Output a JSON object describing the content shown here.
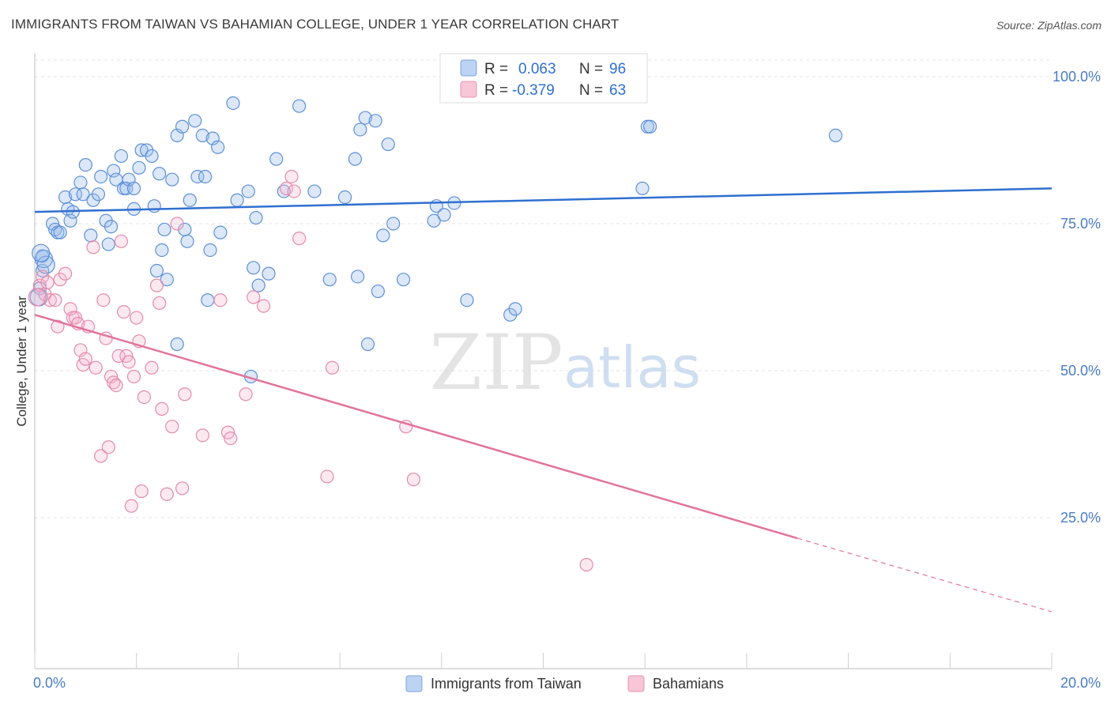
{
  "header": {
    "title": "IMMIGRANTS FROM TAIWAN VS BAHAMIAN COLLEGE, UNDER 1 YEAR CORRELATION CHART",
    "source": "Source: ZipAtlas.com"
  },
  "watermark": {
    "zip": "ZIP",
    "atlas": "atlas"
  },
  "legend": {
    "r_label": "R =",
    "n_label": "N =",
    "rows": [
      {
        "name": "Immigrants from Taiwan",
        "r": "0.063",
        "n": "96"
      },
      {
        "name": "Bahamians",
        "r": "-0.379",
        "n": "63"
      }
    ]
  },
  "chart_data": {
    "type": "scatter",
    "title": "IMMIGRANTS FROM TAIWAN VS BAHAMIAN COLLEGE, UNDER 1 YEAR CORRELATION CHART",
    "xlabel": "",
    "ylabel": "College, Under 1 year",
    "xlim": [
      0,
      20
    ],
    "ylim": [
      0,
      105
    ],
    "x_tick_labels": [
      "0.0%",
      "20.0%"
    ],
    "y_ticks": [
      25,
      50,
      75,
      100
    ],
    "y_tick_labels": [
      "25.0%",
      "50.0%",
      "75.0%",
      "100.0%"
    ],
    "colors": {
      "taiwan": "#4a84d4",
      "bahamians": "#e8799e",
      "tick": "#4a7cc7"
    },
    "series": [
      {
        "name": "Immigrants from Taiwan",
        "color": "#4a84d4",
        "trend": {
          "x": [
            0,
            20
          ],
          "y": [
            77,
            81
          ]
        },
        "points": [
          [
            0.15,
            69.5
          ],
          [
            0.15,
            67
          ],
          [
            0.1,
            64
          ],
          [
            0.35,
            75
          ],
          [
            0.4,
            74
          ],
          [
            0.45,
            73.5
          ],
          [
            0.5,
            73.5
          ],
          [
            0.6,
            79.5
          ],
          [
            0.65,
            77.5
          ],
          [
            0.7,
            75.5
          ],
          [
            0.75,
            77
          ],
          [
            0.8,
            80
          ],
          [
            0.9,
            82
          ],
          [
            0.95,
            80
          ],
          [
            1.0,
            85
          ],
          [
            1.1,
            73
          ],
          [
            1.15,
            79
          ],
          [
            1.25,
            80
          ],
          [
            1.3,
            83
          ],
          [
            1.4,
            75.5
          ],
          [
            1.45,
            71.5
          ],
          [
            1.5,
            74.5
          ],
          [
            1.55,
            84
          ],
          [
            1.6,
            82.5
          ],
          [
            1.7,
            86.5
          ],
          [
            1.75,
            81
          ],
          [
            1.8,
            81
          ],
          [
            1.85,
            82.5
          ],
          [
            1.95,
            81
          ],
          [
            1.95,
            77.5
          ],
          [
            2.05,
            84.5
          ],
          [
            2.1,
            87.5
          ],
          [
            2.2,
            87.5
          ],
          [
            2.3,
            86.5
          ],
          [
            2.35,
            78
          ],
          [
            2.4,
            67
          ],
          [
            2.45,
            83.5
          ],
          [
            2.5,
            70.5
          ],
          [
            2.55,
            74
          ],
          [
            2.6,
            65.5
          ],
          [
            2.7,
            82.5
          ],
          [
            2.8,
            54.5
          ],
          [
            2.8,
            90
          ],
          [
            2.9,
            91.5
          ],
          [
            2.95,
            74
          ],
          [
            3.0,
            72
          ],
          [
            3.05,
            79
          ],
          [
            3.15,
            92.5
          ],
          [
            3.2,
            83
          ],
          [
            3.3,
            90
          ],
          [
            3.35,
            83
          ],
          [
            3.4,
            62
          ],
          [
            3.45,
            70.5
          ],
          [
            3.5,
            89.5
          ],
          [
            3.6,
            88
          ],
          [
            3.65,
            73.5
          ],
          [
            3.9,
            95.5
          ],
          [
            3.98,
            79
          ],
          [
            4.2,
            80.5
          ],
          [
            4.25,
            49
          ],
          [
            4.3,
            67.5
          ],
          [
            4.35,
            76
          ],
          [
            4.4,
            64.5
          ],
          [
            4.6,
            66.5
          ],
          [
            4.75,
            86
          ],
          [
            4.9,
            80.5
          ],
          [
            5.2,
            95
          ],
          [
            5.5,
            80.5
          ],
          [
            5.8,
            65.5
          ],
          [
            6.1,
            79.5
          ],
          [
            6.3,
            86
          ],
          [
            6.35,
            66
          ],
          [
            6.4,
            91
          ],
          [
            6.5,
            93
          ],
          [
            6.55,
            54.5
          ],
          [
            6.7,
            92.5
          ],
          [
            6.75,
            63.5
          ],
          [
            6.85,
            73
          ],
          [
            6.95,
            88.5
          ],
          [
            7.05,
            75
          ],
          [
            7.25,
            65.5
          ],
          [
            7.85,
            75.5
          ],
          [
            7.9,
            78
          ],
          [
            8.05,
            76.5
          ],
          [
            8.25,
            78.5
          ],
          [
            8.5,
            62
          ],
          [
            9.35,
            59.5
          ],
          [
            9.45,
            60.5
          ],
          [
            11.95,
            81
          ],
          [
            12.05,
            91.5
          ],
          [
            12.1,
            91.5
          ],
          [
            15.75,
            90
          ],
          [
            0.18,
            69
          ],
          [
            0.22,
            68
          ],
          [
            0.08,
            62.5
          ],
          [
            0.12,
            70
          ]
        ]
      },
      {
        "name": "Bahamians",
        "color": "#e8799e",
        "trend": {
          "x": [
            0,
            15
          ],
          "y": [
            59.5,
            21.5
          ]
        },
        "trend_extension": {
          "x": [
            15,
            20
          ],
          "y": [
            21.5,
            9
          ]
        },
        "points": [
          [
            0.1,
            64.5
          ],
          [
            0.15,
            66
          ],
          [
            0.2,
            63
          ],
          [
            0.25,
            65
          ],
          [
            0.3,
            62
          ],
          [
            0.4,
            62
          ],
          [
            0.45,
            57.5
          ],
          [
            0.5,
            65.5
          ],
          [
            0.6,
            66.5
          ],
          [
            0.7,
            60.5
          ],
          [
            0.75,
            59
          ],
          [
            0.8,
            59
          ],
          [
            0.85,
            58
          ],
          [
            0.9,
            53.5
          ],
          [
            0.95,
            51
          ],
          [
            1.0,
            52
          ],
          [
            1.05,
            57.5
          ],
          [
            1.15,
            71
          ],
          [
            1.2,
            50.5
          ],
          [
            1.3,
            35.5
          ],
          [
            1.35,
            62
          ],
          [
            1.4,
            55.5
          ],
          [
            1.45,
            37
          ],
          [
            1.5,
            49
          ],
          [
            1.55,
            48
          ],
          [
            1.6,
            47.5
          ],
          [
            1.65,
            52.5
          ],
          [
            1.7,
            72
          ],
          [
            1.75,
            60
          ],
          [
            1.8,
            52.5
          ],
          [
            1.85,
            51.5
          ],
          [
            1.9,
            27
          ],
          [
            1.95,
            49
          ],
          [
            2.0,
            59
          ],
          [
            2.05,
            55
          ],
          [
            2.1,
            29.5
          ],
          [
            2.15,
            45.5
          ],
          [
            2.3,
            50.5
          ],
          [
            2.4,
            64.5
          ],
          [
            2.45,
            61.5
          ],
          [
            2.5,
            43.5
          ],
          [
            2.6,
            29
          ],
          [
            2.7,
            40.5
          ],
          [
            2.8,
            75
          ],
          [
            2.9,
            30
          ],
          [
            2.95,
            46
          ],
          [
            3.3,
            39
          ],
          [
            3.65,
            62
          ],
          [
            3.8,
            39.5
          ],
          [
            3.85,
            38.5
          ],
          [
            4.15,
            46
          ],
          [
            4.3,
            62.5
          ],
          [
            4.5,
            61
          ],
          [
            4.95,
            81
          ],
          [
            5.05,
            83
          ],
          [
            5.1,
            80.5
          ],
          [
            5.2,
            72.5
          ],
          [
            5.75,
            32
          ],
          [
            5.85,
            50.5
          ],
          [
            7.3,
            40.5
          ],
          [
            7.45,
            31.5
          ],
          [
            10.85,
            17
          ],
          [
            0.05,
            62.5
          ]
        ]
      }
    ]
  }
}
